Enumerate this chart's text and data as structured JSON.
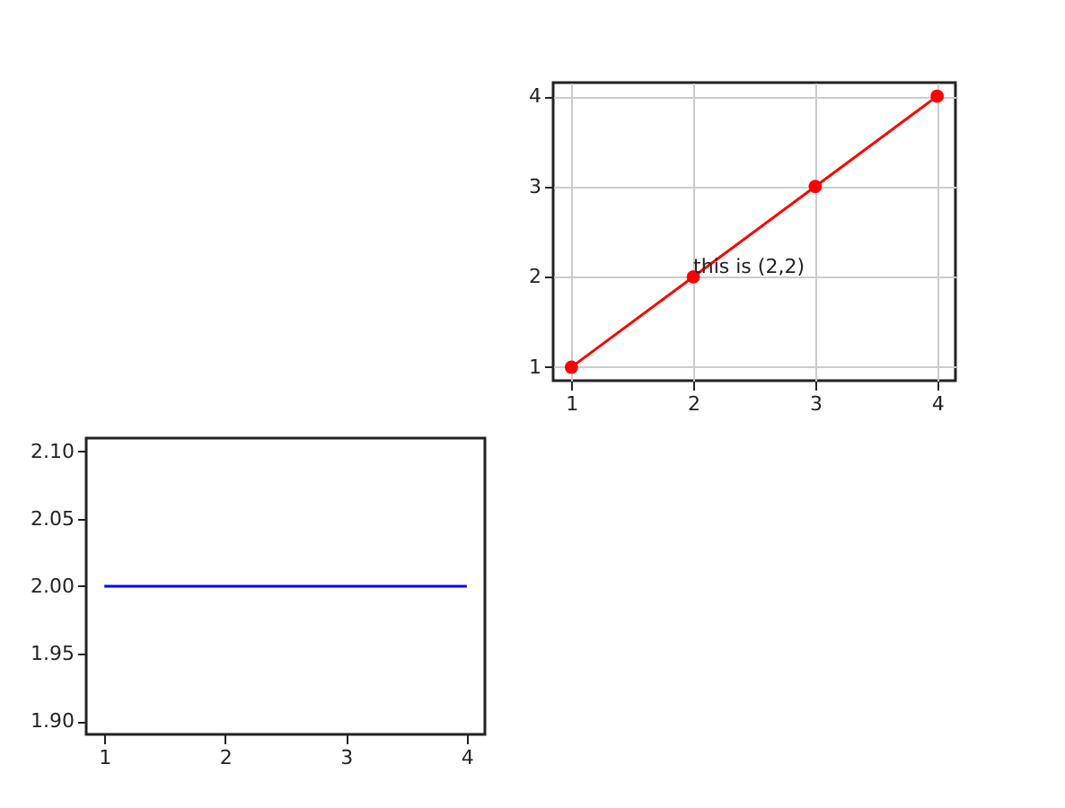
{
  "chart_data": [
    {
      "type": "line",
      "x": [
        1,
        2,
        3,
        4
      ],
      "series": [
        {
          "color": "#ff0000",
          "values": [
            1,
            2,
            3,
            4
          ]
        }
      ],
      "marker": "circle",
      "grid": true,
      "xlim": [
        0.85,
        4.15
      ],
      "ylim": [
        0.85,
        4.15
      ],
      "xticks": [
        1,
        2,
        3,
        4
      ],
      "yticks": [
        1,
        2,
        3,
        4
      ],
      "annotations": [
        {
          "text": "this is (2,2)",
          "x": 2,
          "y": 2
        }
      ]
    },
    {
      "type": "line",
      "x": [
        1,
        2,
        3,
        4
      ],
      "series": [
        {
          "color": "#0000ff",
          "values": [
            2,
            2,
            2,
            2
          ]
        }
      ],
      "grid": false,
      "xlim": [
        0.85,
        4.15
      ],
      "ylim": [
        1.89,
        2.11
      ],
      "xticks": [
        1,
        2,
        3,
        4
      ],
      "yticks": [
        {
          "value": 1.9,
          "label": "1.90"
        },
        {
          "value": 1.95,
          "label": "1.95"
        },
        {
          "value": 2.0,
          "label": "2.00"
        },
        {
          "value": 2.05,
          "label": "2.05"
        },
        {
          "value": 2.1,
          "label": "2.10"
        }
      ]
    }
  ]
}
